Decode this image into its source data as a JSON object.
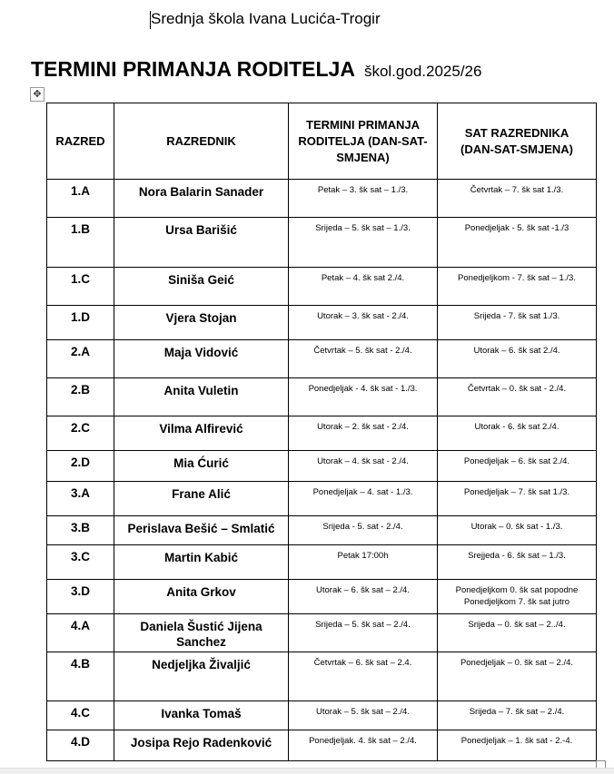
{
  "document": {
    "school": "Srednja škola Ivana Lucića-Trogir",
    "title": "TERMINI PRIMANJA RODITELJA",
    "year": "škol.god.2025/26"
  },
  "table": {
    "headers": [
      "RAZRED",
      "RAZREDNIK",
      "TERMINI PRIMANJA RODITELJA (DAN-SAT-SMJENA)",
      "SAT RAZREDNIKA (DAN-SAT-SMJENA)"
    ],
    "rows": [
      {
        "razred": "1.A",
        "razrednik": "Nora Balarin Sanader",
        "termin": "Petak – 3. šk sat – 1./3.",
        "sat": "Četvrtak – 7. šk sat 1./3."
      },
      {
        "razred": "1.B",
        "razrednik": "Ursa Barišić",
        "termin": "Srijeda – 5. šk sat – 1./3.",
        "sat": "Ponedjeljak -  5. šk sat -1./3"
      },
      {
        "razred": "1.C",
        "razrednik": "Siniša Geić",
        "termin": "Petak – 4. šk  sat 2./4.",
        "sat": "Ponedjeljkom - 7. šk sat – 1./3."
      },
      {
        "razred": "1.D",
        "razrednik": "Vjera Stojan",
        "termin": "Utorak – 3. šk sat - 2./4.",
        "sat": "Srijeda -  7. šk sat 1./3."
      },
      {
        "razred": "2.A",
        "razrednik": "Maja Vidović",
        "termin": "Četvrtak – 5. šk sat - 2./4.",
        "sat": "Utorak – 6. šk sat 2./4."
      },
      {
        "razred": "2.B",
        "razrednik": "Anita Vuletin",
        "termin": "Ponedjeljak -  4. šk sat - 1./3.",
        "sat": "Četvrtak – 0. šk sat - 2./4."
      },
      {
        "razred": "2.C",
        "razrednik": "Vilma Alfirević",
        "termin": "Utorak – 2. šk sat - 2./4.",
        "sat": "Utorak - 6. šk sat 2./4."
      },
      {
        "razred": "2.D",
        "razrednik": "Mia Ćurić",
        "termin": "Utorak – 4. šk sat - 2./4.",
        "sat": "Ponedjeljak – 6. šk sat 2./4."
      },
      {
        "razred": "3.A",
        "razrednik": "Frane Alić",
        "termin": "Ponedjeljak – 4. sat - 1./3.",
        "sat": "Ponedjeljak – 7. šk sat 1./3."
      },
      {
        "razred": "3.B",
        "razrednik": "Perislava Bešić – Smlatić",
        "termin": "Srijeda - 5. sat - 2./4.",
        "sat": "Utorak – 0. šk sat - 1./3."
      },
      {
        "razred": "3.C",
        "razrednik": "Martin Kabić",
        "termin": "Petak 17:00h",
        "sat": "Srejjeda -  6. šk sat – 1./3."
      },
      {
        "razred": "3.D",
        "razrednik": "Anita Grkov",
        "termin": "Utorak – 6. šk sat – 2./4.",
        "sat": "Ponedjeljkom 0. šk sat popodne\nPonedjeljkom 7. šk sat jutro"
      },
      {
        "razred": "4.A",
        "razrednik": "Daniela Šustić Jijena Sanchez",
        "termin": "Srijeda – 5. šk sat – 2./4.",
        "sat": "Srijeda – 0. šk sat – 2../4."
      },
      {
        "razred": "4.B",
        "razrednik": "Nedjeljka Živaljić",
        "termin": "Četvrtak – 6. šk sat – 2.4.",
        "sat": "Ponedjeljak – 0. šk sat – 2./4."
      },
      {
        "razred": "4.C",
        "razrednik": "Ivanka Tomaš",
        "termin": "Utorak – 5. šk sat – 2./4.",
        "sat": "Srijeda – 7. šk sat – 2./4."
      },
      {
        "razred": "4.D",
        "razrednik": "Josipa Rejo Radenković",
        "termin": "Ponedjeljak. 4. šk sat – 2./4.",
        "sat": "Ponedjeljak – 1. šk sat - 2.-4."
      }
    ]
  }
}
